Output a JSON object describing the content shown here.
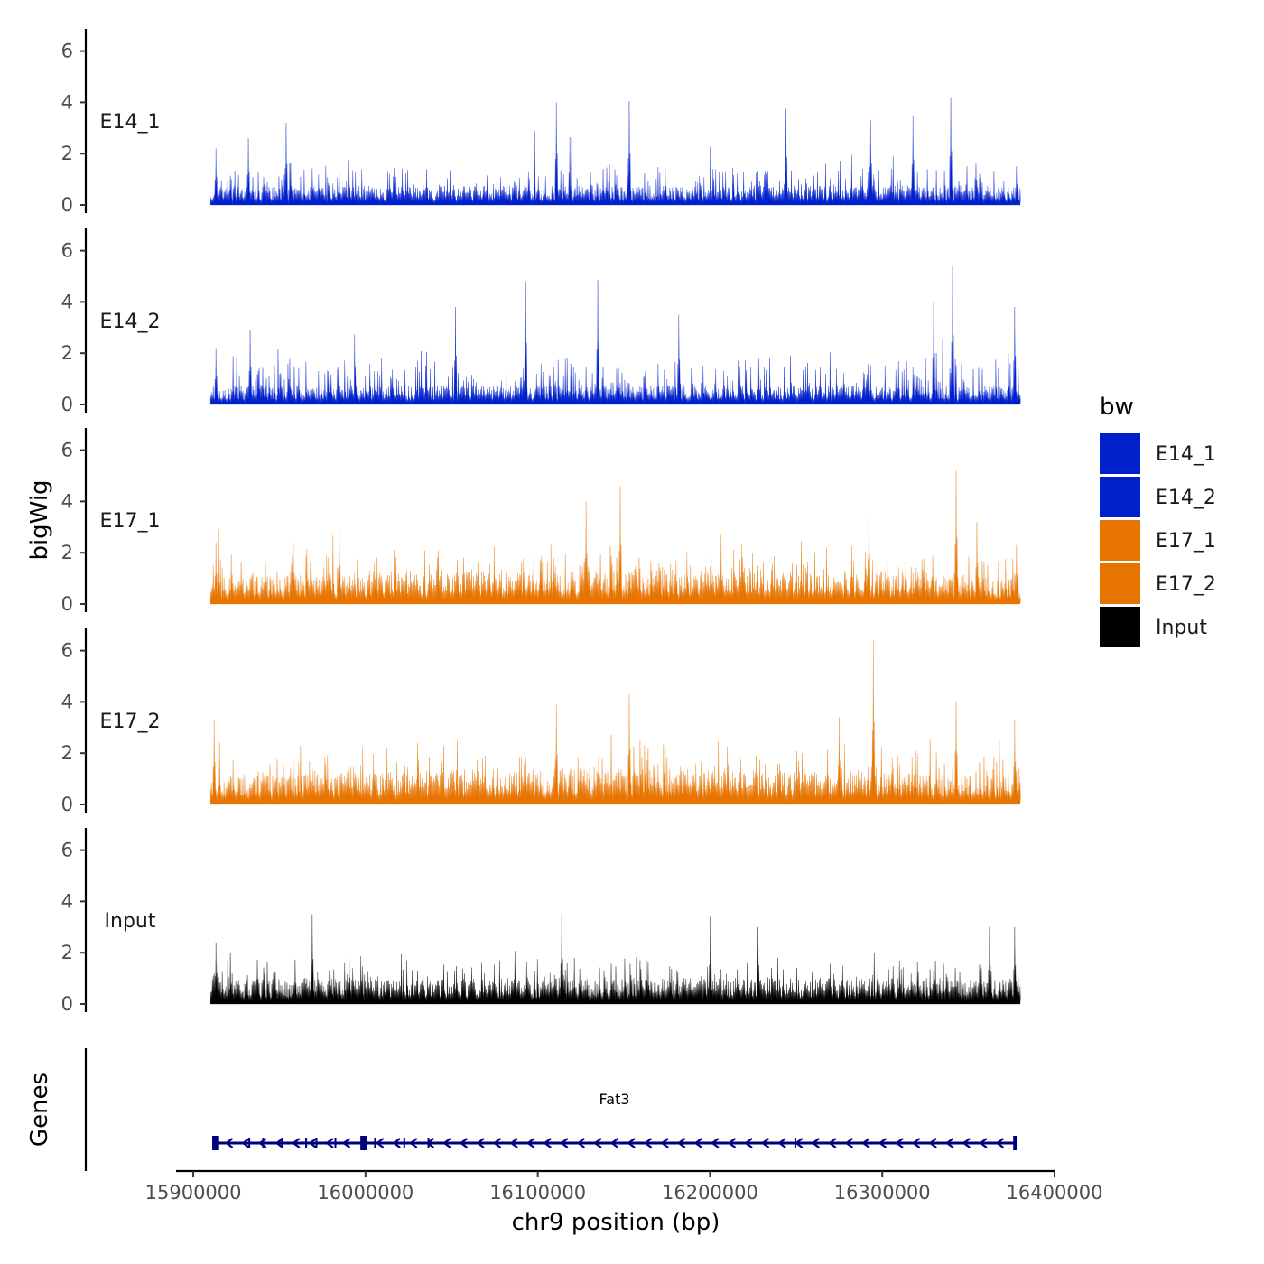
{
  "chart_data": {
    "type": "area",
    "title": "",
    "xlabel": "chr9 position (bp)",
    "ylabel": "bigWig",
    "genes_label": "Genes",
    "xlim": [
      15890000,
      16400000
    ],
    "data_range": [
      15910000,
      16380000
    ],
    "x_ticks": [
      "15900000",
      "16000000",
      "16100000",
      "16200000",
      "16300000",
      "16400000"
    ],
    "x_tick_values": [
      15900000,
      16000000,
      16100000,
      16200000,
      16300000,
      16400000
    ],
    "ylim": [
      0,
      6.8
    ],
    "y_ticks": [
      "0",
      "2",
      "4",
      "6"
    ],
    "y_tick_values": [
      0,
      2,
      4,
      6
    ],
    "legend": {
      "title": "bw",
      "items": [
        {
          "label": "E14_1",
          "color": "#0020CC"
        },
        {
          "label": "E14_2",
          "color": "#0020CC"
        },
        {
          "label": "E17_1",
          "color": "#E87400"
        },
        {
          "label": "E17_2",
          "color": "#E87400"
        },
        {
          "label": "Input",
          "color": "#000000"
        }
      ]
    },
    "series": [
      {
        "name": "E14_1",
        "color": "#0020CC",
        "seed": 11,
        "base": 0.55,
        "spread": 1.05,
        "profile": "flat",
        "peaks": [
          [
            15913000,
            2.2
          ],
          [
            15932000,
            2.6
          ],
          [
            15954000,
            3.2
          ],
          [
            16111000,
            4.0
          ],
          [
            16153000,
            4.05
          ],
          [
            16244000,
            3.75
          ],
          [
            16293000,
            3.3
          ],
          [
            16318000,
            3.5
          ],
          [
            16340000,
            4.2
          ],
          [
            16378000,
            1.5
          ]
        ]
      },
      {
        "name": "E14_2",
        "color": "#0020CC",
        "seed": 23,
        "base": 0.55,
        "spread": 1.2,
        "profile": "flat",
        "peaks": [
          [
            15913000,
            2.2
          ],
          [
            15933000,
            2.9
          ],
          [
            16052000,
            3.8
          ],
          [
            16093000,
            4.8
          ],
          [
            16135000,
            4.85
          ],
          [
            16182000,
            3.5
          ],
          [
            16330000,
            4.0
          ],
          [
            16341000,
            5.4
          ],
          [
            16377000,
            3.8
          ]
        ]
      },
      {
        "name": "E17_1",
        "color": "#E87400",
        "seed": 37,
        "base": 0.75,
        "spread": 1.05,
        "profile": "bump",
        "peaks": [
          [
            15913000,
            2.4
          ],
          [
            15958000,
            2.4
          ],
          [
            15985000,
            3.0
          ],
          [
            16128000,
            4.0
          ],
          [
            16148000,
            4.6
          ],
          [
            16292000,
            3.9
          ],
          [
            16343000,
            5.2
          ],
          [
            16355000,
            3.2
          ],
          [
            16378000,
            2.3
          ]
        ]
      },
      {
        "name": "E17_2",
        "color": "#E87400",
        "seed": 53,
        "base": 0.8,
        "spread": 1.15,
        "profile": "bump",
        "peaks": [
          [
            15912000,
            3.3
          ],
          [
            16111000,
            3.9
          ],
          [
            16153000,
            4.3
          ],
          [
            16275000,
            3.4
          ],
          [
            16295000,
            6.4
          ],
          [
            16343000,
            4.0
          ],
          [
            16377000,
            3.3
          ]
        ]
      },
      {
        "name": "Input",
        "color": "#000000",
        "seed": 71,
        "base": 0.75,
        "spread": 0.95,
        "profile": "flat",
        "peaks": [
          [
            15913000,
            2.4
          ],
          [
            15969000,
            3.5
          ],
          [
            16114000,
            3.5
          ],
          [
            16200000,
            3.4
          ],
          [
            16228000,
            3.0
          ],
          [
            16362000,
            3.0
          ],
          [
            16377000,
            3.0
          ]
        ]
      }
    ],
    "gene": {
      "name": "Fat3",
      "strand": "-",
      "start": 15911000,
      "end": 16378000,
      "color": "#00007F",
      "exons": [
        [
          15911000,
          15915000
        ],
        [
          15932000,
          15933000
        ],
        [
          15940000,
          15941000
        ],
        [
          15951000,
          15952000
        ],
        [
          15965000,
          15966000
        ],
        [
          15971000,
          15972000
        ],
        [
          15982000,
          15983000
        ],
        [
          15997000,
          16001000
        ],
        [
          16005000,
          16006000
        ],
        [
          16022000,
          16023000
        ],
        [
          16036000,
          16037000
        ],
        [
          16249000,
          16250000
        ],
        [
          16376000,
          16378000
        ]
      ]
    }
  }
}
